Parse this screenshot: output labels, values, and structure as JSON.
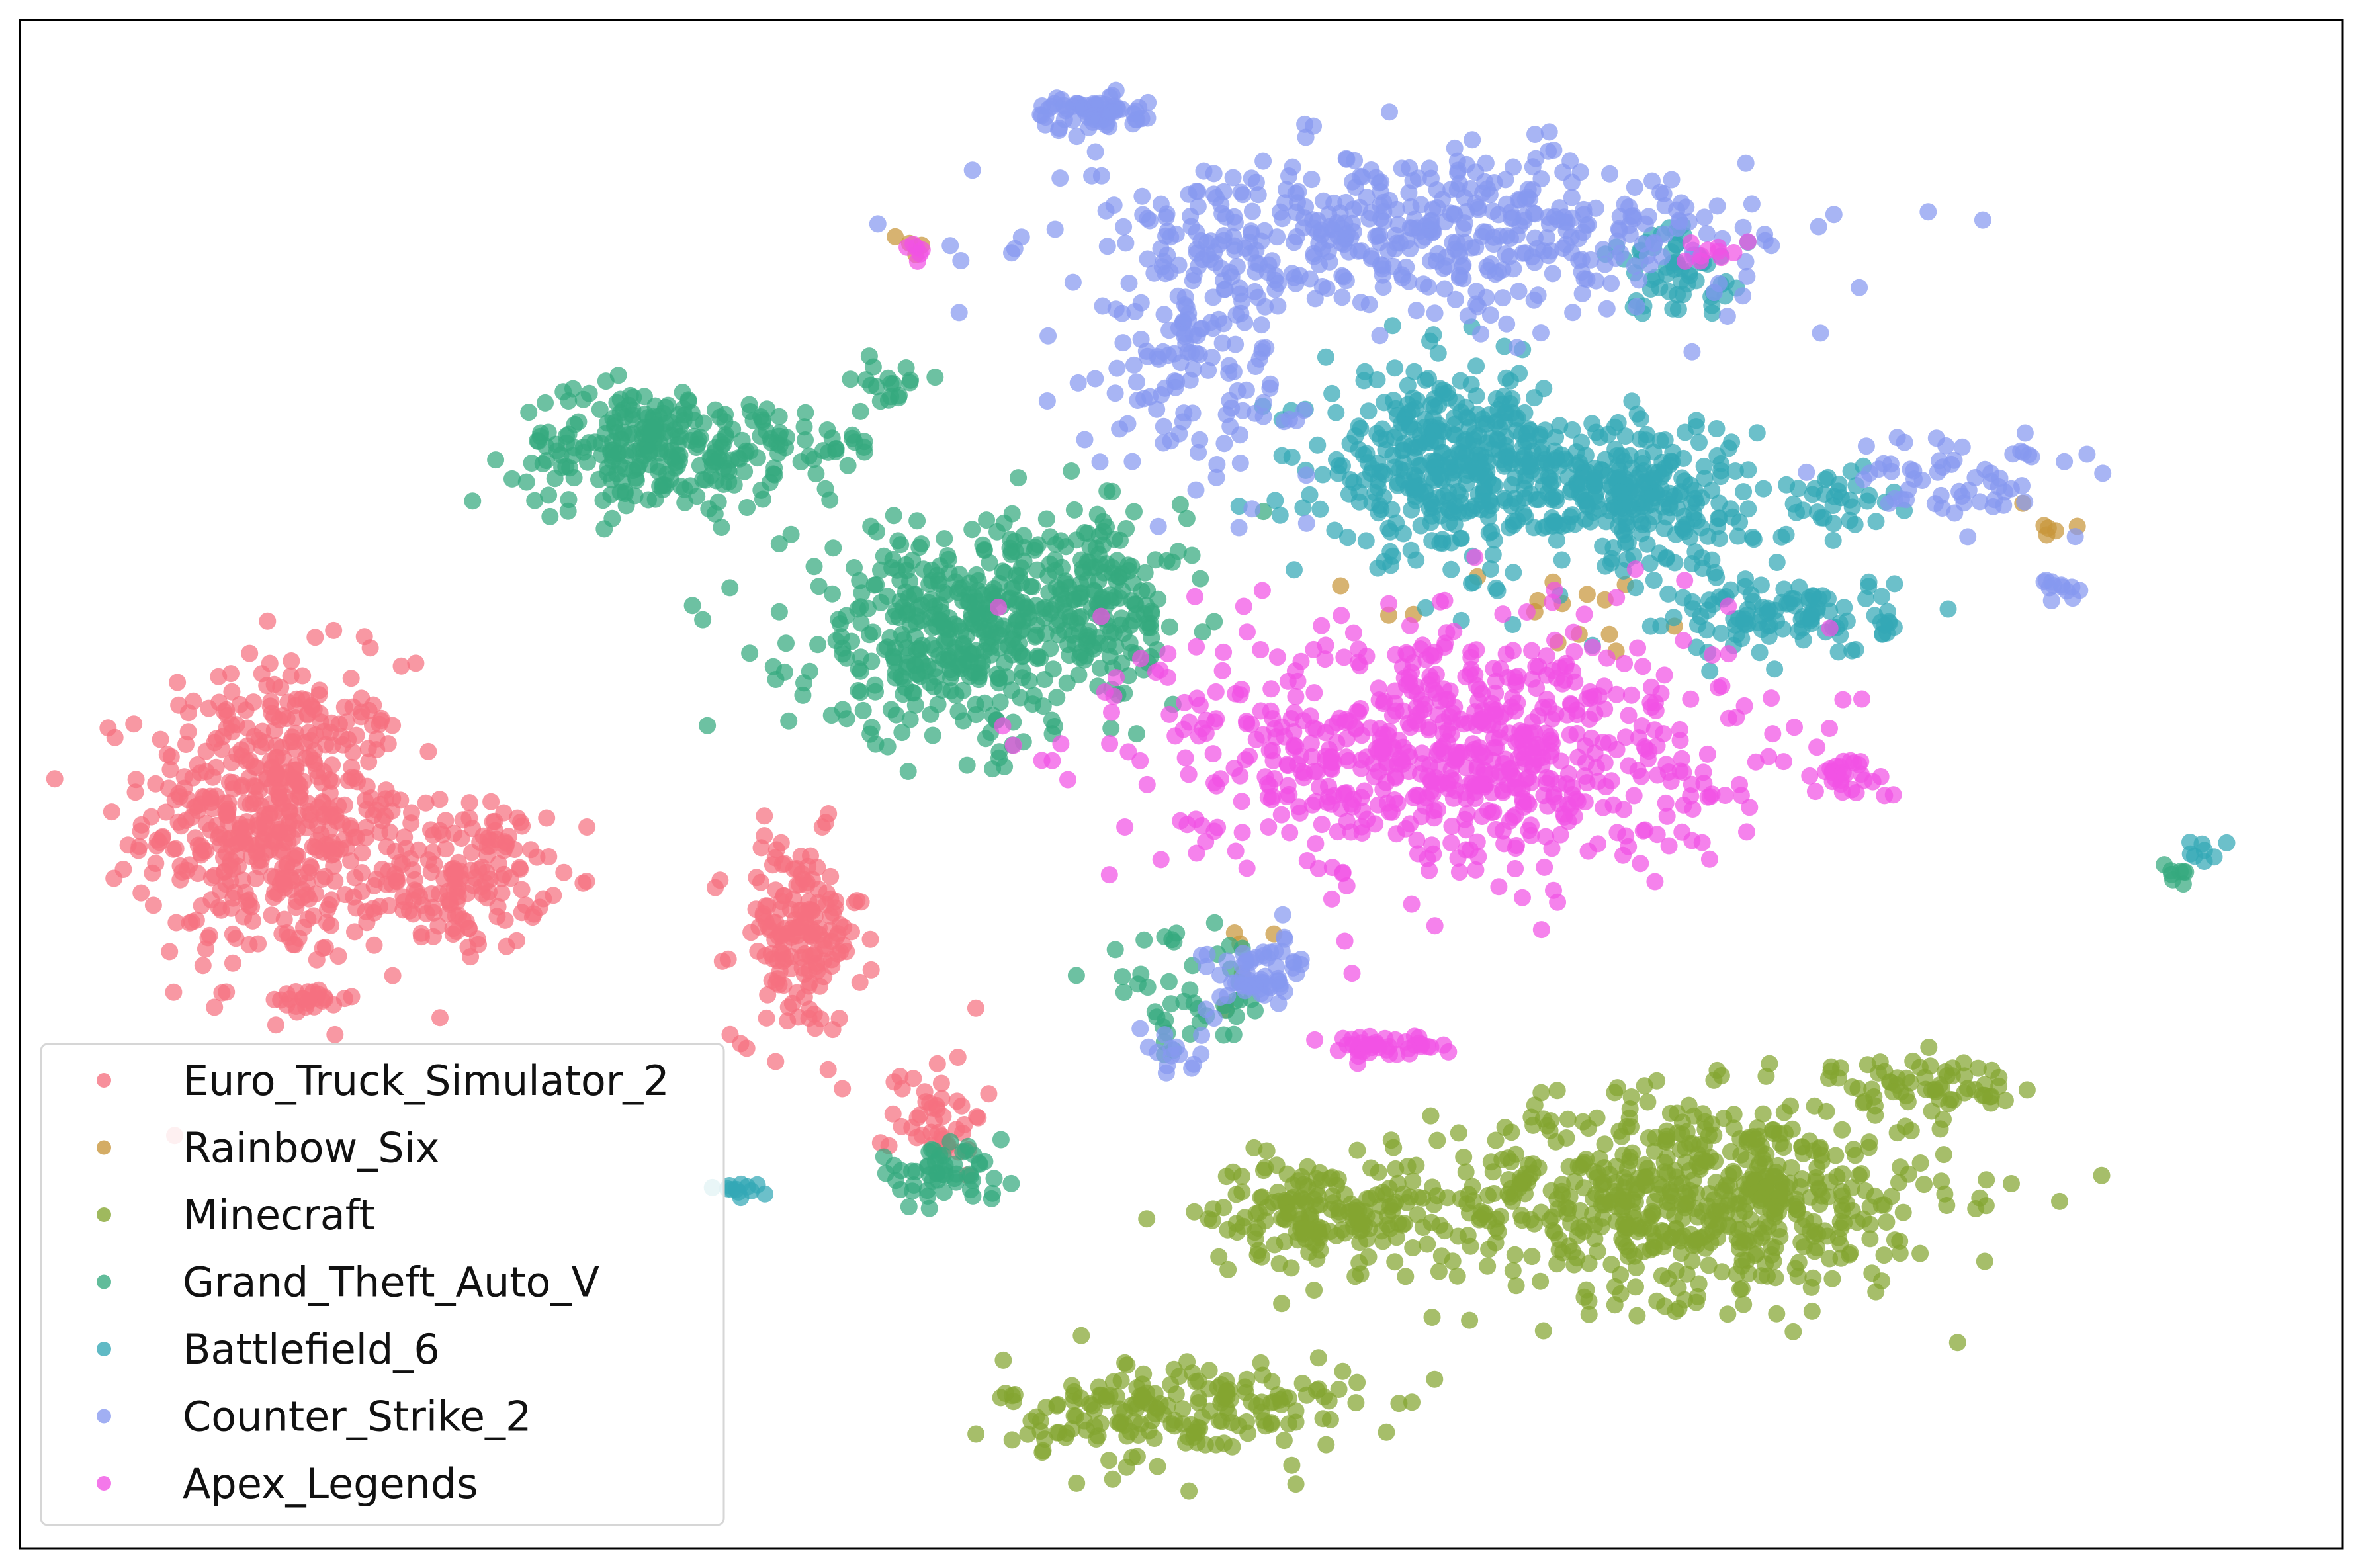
{
  "chart_data": {
    "type": "scatter",
    "title": "",
    "xlabel": "",
    "ylabel": "",
    "xlim": [
      0,
      100
    ],
    "ylim": [
      0,
      100
    ],
    "ticks": "hidden",
    "grid": false,
    "legend_position": "lower-left",
    "series": [
      {
        "name": "Euro_Truck_Simulator_2",
        "color": "#f5707f",
        "clusters": [
          {
            "cx": 11.0,
            "cy": 48.0,
            "sx": 2.8,
            "sy": 5.0,
            "n": 520
          },
          {
            "cx": 19.0,
            "cy": 44.0,
            "sx": 1.8,
            "sy": 2.4,
            "n": 160
          },
          {
            "cx": 33.5,
            "cy": 40.0,
            "sx": 1.4,
            "sy": 3.3,
            "n": 170
          },
          {
            "cx": 39.5,
            "cy": 28.5,
            "sx": 1.0,
            "sy": 2.0,
            "n": 45
          },
          {
            "cx": 12.5,
            "cy": 36.0,
            "sx": 0.8,
            "sy": 0.4,
            "n": 25
          }
        ]
      },
      {
        "name": "Rainbow_Six",
        "color": "#c8953a",
        "clusters": [
          {
            "cx": 66.0,
            "cy": 61.0,
            "sx": 4.0,
            "sy": 1.5,
            "n": 16
          },
          {
            "cx": 38.5,
            "cy": 85.5,
            "sx": 0.5,
            "sy": 0.5,
            "n": 4
          },
          {
            "cx": 87.5,
            "cy": 67.5,
            "sx": 1.0,
            "sy": 1.0,
            "n": 6
          },
          {
            "cx": 52.0,
            "cy": 39.0,
            "sx": 1.5,
            "sy": 3.0,
            "n": 6
          }
        ]
      },
      {
        "name": "Minecraft",
        "color": "#84a531",
        "clusters": [
          {
            "cx": 72.0,
            "cy": 23.0,
            "sx": 5.5,
            "sy": 3.3,
            "n": 640
          },
          {
            "cx": 56.0,
            "cy": 22.0,
            "sx": 2.5,
            "sy": 1.7,
            "n": 170
          },
          {
            "cx": 82.0,
            "cy": 30.5,
            "sx": 2.0,
            "sy": 0.8,
            "n": 60
          },
          {
            "cx": 50.0,
            "cy": 9.0,
            "sx": 3.8,
            "sy": 1.8,
            "n": 190
          }
        ]
      },
      {
        "name": "Grand_Theft_Auto_V",
        "color": "#34a97e",
        "clusters": [
          {
            "cx": 27.0,
            "cy": 72.0,
            "sx": 2.8,
            "sy": 2.0,
            "n": 230
          },
          {
            "cx": 40.5,
            "cy": 60.0,
            "sx": 3.6,
            "sy": 3.6,
            "n": 420
          },
          {
            "cx": 46.5,
            "cy": 62.0,
            "sx": 1.8,
            "sy": 2.8,
            "n": 140
          },
          {
            "cx": 37.5,
            "cy": 76.5,
            "sx": 0.8,
            "sy": 0.7,
            "n": 18
          },
          {
            "cx": 39.5,
            "cy": 24.5,
            "sx": 1.5,
            "sy": 0.8,
            "n": 55
          },
          {
            "cx": 33.0,
            "cy": 72.0,
            "sx": 2.2,
            "sy": 1.5,
            "n": 55
          },
          {
            "cx": 50.0,
            "cy": 36.0,
            "sx": 2.0,
            "sy": 2.0,
            "n": 45
          },
          {
            "cx": 93.0,
            "cy": 44.0,
            "sx": 0.4,
            "sy": 0.4,
            "n": 8
          }
        ]
      },
      {
        "name": "Battlefield_6",
        "color": "#33a7b5",
        "clusters": [
          {
            "cx": 61.5,
            "cy": 71.0,
            "sx": 2.7,
            "sy": 3.0,
            "n": 380
          },
          {
            "cx": 69.5,
            "cy": 69.0,
            "sx": 2.5,
            "sy": 2.5,
            "n": 260
          },
          {
            "cx": 76.0,
            "cy": 61.0,
            "sx": 2.3,
            "sy": 1.3,
            "n": 110
          },
          {
            "cx": 71.5,
            "cy": 83.5,
            "sx": 1.6,
            "sy": 1.4,
            "n": 60
          },
          {
            "cx": 78.0,
            "cy": 68.5,
            "sx": 1.5,
            "sy": 1.1,
            "n": 35
          },
          {
            "cx": 31.5,
            "cy": 23.5,
            "sx": 0.8,
            "sy": 0.3,
            "n": 12
          },
          {
            "cx": 94.0,
            "cy": 45.5,
            "sx": 0.5,
            "sy": 0.5,
            "n": 8
          }
        ]
      },
      {
        "name": "Counter_Strike_2",
        "color": "#8799f0",
        "clusters": [
          {
            "cx": 60.0,
            "cy": 86.0,
            "sx": 7.5,
            "sy": 2.6,
            "n": 480
          },
          {
            "cx": 51.0,
            "cy": 78.0,
            "sx": 2.3,
            "sy": 4.0,
            "n": 130
          },
          {
            "cx": 83.5,
            "cy": 70.0,
            "sx": 2.5,
            "sy": 1.4,
            "n": 60
          },
          {
            "cx": 46.0,
            "cy": 94.0,
            "sx": 1.2,
            "sy": 0.6,
            "n": 70
          },
          {
            "cx": 53.5,
            "cy": 37.5,
            "sx": 1.2,
            "sy": 1.2,
            "n": 60
          },
          {
            "cx": 49.5,
            "cy": 32.5,
            "sx": 0.8,
            "sy": 0.8,
            "n": 14
          },
          {
            "cx": 88.0,
            "cy": 62.5,
            "sx": 0.5,
            "sy": 0.6,
            "n": 12
          }
        ]
      },
      {
        "name": "Apex_Legends",
        "color": "#f152e4",
        "clusters": [
          {
            "cx": 61.5,
            "cy": 52.5,
            "sx": 6.0,
            "sy": 4.2,
            "n": 720
          },
          {
            "cx": 58.5,
            "cy": 33.0,
            "sx": 1.3,
            "sy": 0.4,
            "n": 40
          },
          {
            "cx": 78.5,
            "cy": 50.5,
            "sx": 1.0,
            "sy": 0.7,
            "n": 30
          },
          {
            "cx": 73.0,
            "cy": 84.5,
            "sx": 0.8,
            "sy": 0.8,
            "n": 10
          },
          {
            "cx": 38.5,
            "cy": 85.0,
            "sx": 0.4,
            "sy": 0.4,
            "n": 6
          }
        ]
      }
    ]
  }
}
